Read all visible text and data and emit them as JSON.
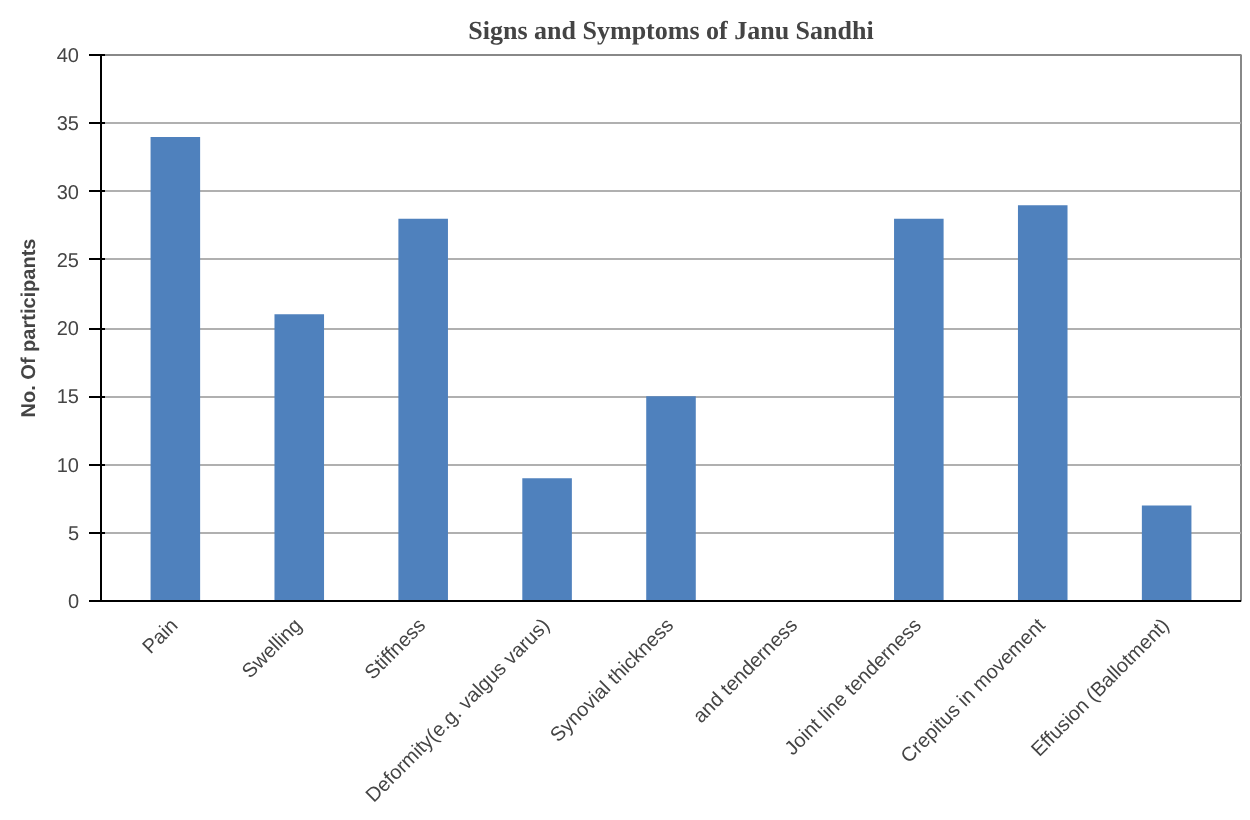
{
  "chart_data": {
    "type": "bar",
    "title": "Signs and Symptoms of Janu Sandhi",
    "ylabel": "No. Of participants",
    "categories": [
      "Pain",
      "Swelling",
      "Stiffness",
      "Deformity(e.g. valgus varus)",
      "Synovial thickness",
      "and tenderness",
      "Joint line tenderness",
      "Crepitus in movement",
      "Effusion (Ballotment)"
    ],
    "values": [
      34,
      21,
      28,
      9,
      15,
      0,
      28,
      29,
      7
    ],
    "color": "#4f81bd",
    "ylim": [
      0,
      40
    ],
    "yticks": [
      0,
      5,
      10,
      15,
      20,
      25,
      30,
      35,
      40
    ],
    "grid": "y"
  }
}
